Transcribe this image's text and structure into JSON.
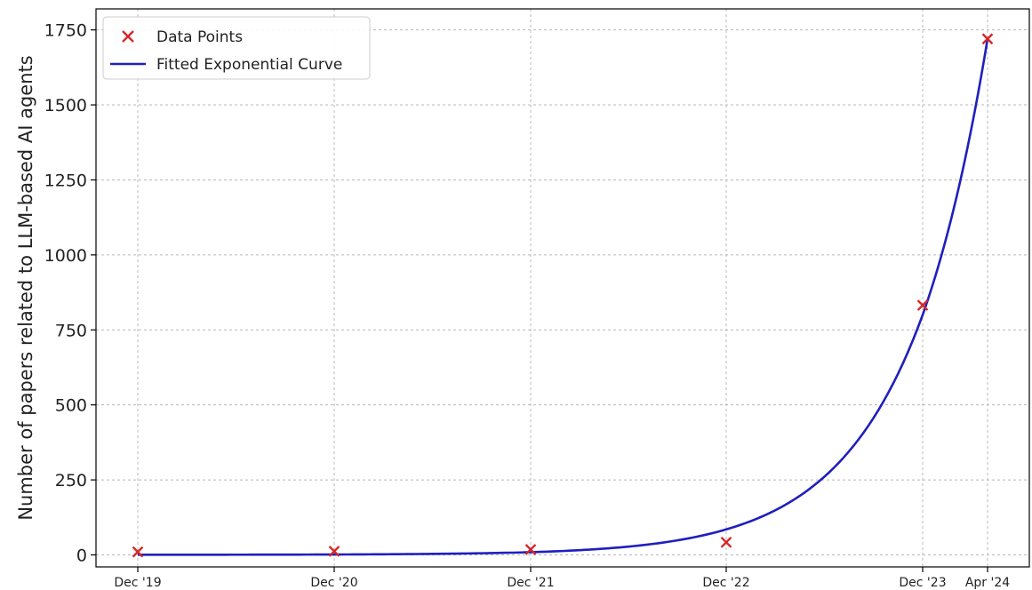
{
  "chart_data": {
    "type": "line",
    "xlabel": "",
    "ylabel": "Number of papers related to LLM-based AI agents",
    "ylim": [
      -40,
      1820
    ],
    "y_ticks": [
      0,
      250,
      500,
      750,
      1000,
      1250,
      1500,
      1750
    ],
    "x_categories": [
      "Dec '19",
      "Dec '20",
      "Dec '21",
      "Dec '22",
      "Dec '23",
      "Apr '24"
    ],
    "grid": true,
    "legend_position": "top-left",
    "series": [
      {
        "name": "Data Points",
        "kind": "scatter",
        "marker": "x",
        "color": "#d62728",
        "x": [
          "Dec '19",
          "Dec '20",
          "Dec '21",
          "Dec '22",
          "Dec '23",
          "Apr '24"
        ],
        "values": [
          10,
          12,
          18,
          42,
          832,
          1720
        ]
      },
      {
        "name": "Fitted Exponential Curve",
        "kind": "line",
        "color": "#1f1fbf",
        "x": [
          "Dec '19",
          "Dec '20",
          "Dec '21",
          "Dec '22",
          "Dec '23",
          "Apr '24"
        ],
        "values": [
          0.4,
          1.3,
          9,
          85,
          800,
          1720
        ]
      }
    ]
  }
}
